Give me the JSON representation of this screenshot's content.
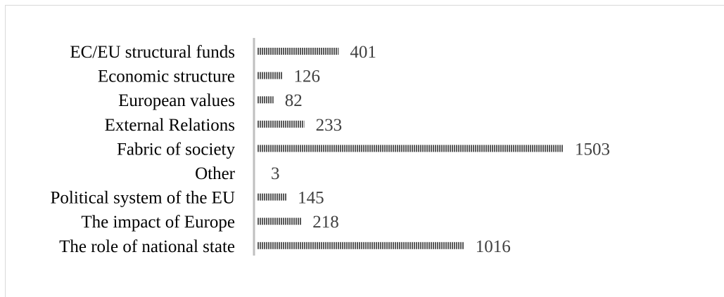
{
  "chart_data": {
    "type": "bar",
    "orientation": "horizontal",
    "title": "",
    "xlabel": "",
    "ylabel": "",
    "categories": [
      "EC/EU structural funds",
      "Economic structure",
      "European values",
      "External Relations",
      "Fabric of society",
      "Other",
      "Political system of the EU",
      "The impact of Europe",
      "The role of national state"
    ],
    "values": [
      401,
      126,
      82,
      233,
      1503,
      3,
      145,
      218,
      1016
    ],
    "value_labels": [
      "401",
      "126",
      "82",
      "233",
      "1503",
      "3",
      "145",
      "218",
      "1016"
    ],
    "xlim": [
      0,
      1503
    ],
    "grid": false,
    "legend": "none",
    "bar_fill": "vertical-hatch",
    "colors": {
      "bar": "#595959",
      "axis": "#bfbfbf",
      "label": "#000000",
      "value": "#404040"
    }
  }
}
